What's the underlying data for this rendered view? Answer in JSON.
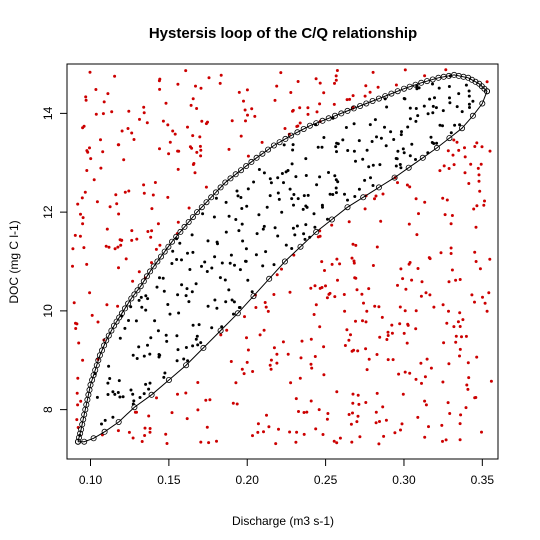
{
  "chart_data": {
    "type": "scatter",
    "title": "Hystersis loop of the C/Q relationship",
    "xlabel": "Discharge (m3 s-1)",
    "ylabel": "DOC (mg C l-1)",
    "xlim": [
      0.085,
      0.36
    ],
    "ylim": [
      7.0,
      15.0
    ],
    "x_ticks": [
      0.1,
      0.15,
      0.2,
      0.25,
      0.3,
      0.35
    ],
    "x_tick_labels": [
      "0.10",
      "0.15",
      "0.20",
      "0.25",
      "0.30",
      "0.35"
    ],
    "y_ticks": [
      8,
      10,
      12,
      14
    ],
    "y_tick_labels": [
      "8",
      "10",
      "12",
      "14"
    ],
    "grid": false,
    "legend": "none",
    "colors": {
      "outside_points": "#cc0000",
      "inside_points": "#000000",
      "loop": "#000000"
    },
    "loop": {
      "upper_branch": [
        [
          0.092,
          7.35
        ],
        [
          0.094,
          7.6
        ],
        [
          0.096,
          7.9
        ],
        [
          0.098,
          8.2
        ],
        [
          0.1,
          8.5
        ],
        [
          0.103,
          8.8
        ],
        [
          0.106,
          9.1
        ],
        [
          0.11,
          9.4
        ],
        [
          0.115,
          9.7
        ],
        [
          0.12,
          9.95
        ],
        [
          0.126,
          10.25
        ],
        [
          0.132,
          10.5
        ],
        [
          0.138,
          10.8
        ],
        [
          0.145,
          11.1
        ],
        [
          0.152,
          11.4
        ],
        [
          0.16,
          11.7
        ],
        [
          0.168,
          12.0
        ],
        [
          0.177,
          12.3
        ],
        [
          0.186,
          12.6
        ],
        [
          0.196,
          12.85
        ],
        [
          0.206,
          13.1
        ],
        [
          0.217,
          13.35
        ],
        [
          0.228,
          13.55
        ],
        [
          0.24,
          13.75
        ],
        [
          0.252,
          13.9
        ],
        [
          0.264,
          14.05
        ],
        [
          0.276,
          14.2
        ],
        [
          0.288,
          14.35
        ],
        [
          0.3,
          14.5
        ],
        [
          0.311,
          14.62
        ],
        [
          0.322,
          14.72
        ],
        [
          0.332,
          14.78
        ],
        [
          0.341,
          14.72
        ],
        [
          0.348,
          14.6
        ],
        [
          0.353,
          14.45
        ]
      ],
      "lower_branch": [
        [
          0.353,
          14.45
        ],
        [
          0.35,
          14.2
        ],
        [
          0.344,
          13.95
        ],
        [
          0.337,
          13.7
        ],
        [
          0.329,
          13.5
        ],
        [
          0.321,
          13.3
        ],
        [
          0.312,
          13.1
        ],
        [
          0.303,
          12.9
        ],
        [
          0.294,
          12.7
        ],
        [
          0.284,
          12.5
        ],
        [
          0.274,
          12.3
        ],
        [
          0.264,
          12.1
        ],
        [
          0.254,
          11.85
        ],
        [
          0.244,
          11.6
        ],
        [
          0.234,
          11.3
        ],
        [
          0.224,
          11.0
        ],
        [
          0.214,
          10.65
        ],
        [
          0.204,
          10.3
        ],
        [
          0.194,
          9.95
        ],
        [
          0.183,
          9.6
        ],
        [
          0.172,
          9.25
        ],
        [
          0.161,
          8.9
        ],
        [
          0.15,
          8.6
        ],
        [
          0.139,
          8.3
        ],
        [
          0.128,
          8.05
        ],
        [
          0.118,
          7.75
        ],
        [
          0.109,
          7.55
        ],
        [
          0.102,
          7.42
        ],
        [
          0.096,
          7.35
        ],
        [
          0.092,
          7.35
        ]
      ]
    },
    "scatter_counts": {
      "outside": 520,
      "inside": 300
    }
  }
}
